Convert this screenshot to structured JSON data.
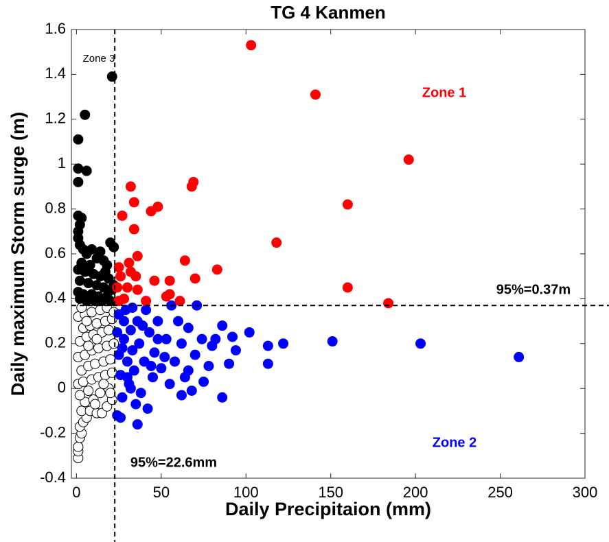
{
  "chart_data": {
    "type": "scatter",
    "title": "TG 4 Kanmen",
    "x_label": "Daily Precipitaion (mm)",
    "y_label": "Daily maximum Storm surge (m)",
    "xlim": [
      -3,
      300
    ],
    "ylim": [
      -0.4,
      1.6
    ],
    "xticks": [
      0,
      50,
      100,
      150,
      200,
      250,
      300
    ],
    "yticks": [
      -0.4,
      -0.2,
      0,
      0.2,
      0.4,
      0.6,
      0.8,
      1,
      1.2,
      1.4,
      1.6
    ],
    "threshold_x": 22.6,
    "threshold_y": 0.37,
    "annotations": [
      "Zone 3",
      "Zone 1",
      "Zone 2",
      "95%=0.37m",
      "95%=22.6mm"
    ],
    "annotation_colors": [
      "#000000",
      "#ff0000",
      "#0000ff",
      "#000000",
      "#000000"
    ],
    "series": [
      {
        "fill": "#ffffff",
        "stroke": "#000000",
        "x": [
          1,
          1,
          1,
          2,
          3,
          2,
          4,
          6,
          3,
          8,
          12,
          15,
          18,
          21,
          5,
          10,
          2,
          7,
          14,
          19,
          1,
          4,
          9,
          13,
          17,
          21,
          3,
          7,
          11,
          16,
          20,
          1,
          5,
          9,
          13,
          18,
          22,
          2,
          6,
          10,
          15,
          19,
          4,
          8,
          12,
          17,
          21,
          1,
          5,
          9,
          14,
          18,
          22,
          3,
          7,
          12,
          16,
          20,
          6,
          11
        ],
        "y": [
          -0.31,
          -0.28,
          -0.26,
          -0.22,
          -0.2,
          -0.17,
          -0.15,
          -0.13,
          -0.1,
          -0.1,
          -0.11,
          -0.11,
          -0.08,
          -0.05,
          -0.06,
          -0.05,
          -0.03,
          -0.01,
          -0.02,
          0,
          0.02,
          0.03,
          0.04,
          0.05,
          0.06,
          0.07,
          0.08,
          0.1,
          0.11,
          0.12,
          0.13,
          0.14,
          0.15,
          0.17,
          0.18,
          0.19,
          0.2,
          0.21,
          0.23,
          0.24,
          0.25,
          0.26,
          0.27,
          0.28,
          0.29,
          0.3,
          0.31,
          0.32,
          0.33,
          0.34,
          0.35,
          0.36,
          0.34,
          0.36,
          0.19,
          0.22,
          0.02,
          -0.02,
          0.3,
          -0.07
        ]
      },
      {
        "fill": "#000000",
        "stroke": "#000000",
        "x": [
          21,
          5,
          1,
          1,
          6,
          1,
          1,
          3,
          2,
          1,
          1,
          2,
          4,
          9,
          14,
          20,
          22,
          6,
          12,
          16,
          3,
          8,
          18,
          1,
          5,
          10,
          14,
          19,
          2,
          7,
          12,
          16,
          21,
          1,
          4,
          9,
          13,
          18,
          2,
          6,
          11,
          15,
          20,
          22,
          17
        ],
        "y": [
          1.39,
          1.22,
          1.11,
          0.98,
          0.97,
          0.92,
          0.77,
          0.76,
          0.73,
          0.7,
          0.67,
          0.64,
          0.62,
          0.62,
          0.61,
          0.65,
          0.63,
          0.6,
          0.58,
          0.57,
          0.56,
          0.55,
          0.55,
          0.53,
          0.52,
          0.51,
          0.5,
          0.49,
          0.48,
          0.47,
          0.46,
          0.45,
          0.44,
          0.43,
          0.42,
          0.42,
          0.41,
          0.41,
          0.4,
          0.39,
          0.39,
          0.39,
          0.39,
          0.46,
          0.52
        ]
      },
      {
        "fill": "#0000ff",
        "stroke": "#0000ff",
        "x": [
          261,
          203,
          151,
          122,
          113,
          113,
          102,
          94,
          92,
          90,
          86,
          86,
          82,
          80,
          78,
          74,
          71,
          70,
          66,
          64,
          62,
          60,
          58,
          56,
          55,
          53,
          50,
          48,
          46,
          45,
          43,
          41,
          40,
          38,
          37,
          36,
          35,
          34,
          33,
          32,
          31,
          30,
          29,
          28,
          27,
          26,
          25,
          24,
          26,
          36,
          42,
          33,
          30,
          39,
          44,
          28,
          24,
          25,
          32,
          27,
          48,
          52,
          66,
          75,
          62,
          68
        ],
        "y": [
          0.14,
          0.2,
          0.21,
          0.2,
          0.19,
          0.11,
          0.25,
          0.17,
          0.23,
          0.11,
          0.28,
          -0.04,
          0.22,
          0.19,
          0.1,
          0.22,
          0.37,
          0.15,
          0.27,
          0.05,
          0.2,
          0.3,
          0.12,
          0.37,
          0.02,
          0.22,
          0.09,
          0.3,
          0.16,
          0.05,
          0.25,
          0.35,
          0.12,
          -0.02,
          0.2,
          0.3,
          -0.07,
          0.08,
          0.17,
          0.26,
          0.02,
          0.12,
          0.35,
          0.22,
          -0.04,
          0.06,
          0.15,
          -0.12,
          -0.13,
          -0.16,
          -0.09,
          0.36,
          0.05,
          0.28,
          0.1,
          0.3,
          0.25,
          0.33,
          0,
          0.18,
          0.22,
          0.14,
          0.08,
          0.03,
          -0.03,
          -0.01
        ]
      },
      {
        "fill": "#ff0000",
        "stroke": "#ff0000",
        "x": [
          103,
          141,
          196,
          69,
          68,
          160,
          32,
          34,
          48,
          44,
          27,
          34,
          118,
          36,
          64,
          31,
          25,
          83,
          32,
          26,
          35,
          70,
          46,
          55,
          160,
          24,
          30,
          36,
          55,
          53,
          28,
          41,
          61,
          184,
          25
        ],
        "y": [
          1.53,
          1.31,
          1.02,
          0.92,
          0.9,
          0.82,
          0.9,
          0.83,
          0.81,
          0.79,
          0.77,
          0.71,
          0.65,
          0.59,
          0.57,
          0.56,
          0.54,
          0.53,
          0.52,
          0.5,
          0.5,
          0.49,
          0.48,
          0.48,
          0.45,
          0.45,
          0.45,
          0.44,
          0.42,
          0.41,
          0.4,
          0.39,
          0.39,
          0.38,
          0.39
        ]
      }
    ]
  }
}
